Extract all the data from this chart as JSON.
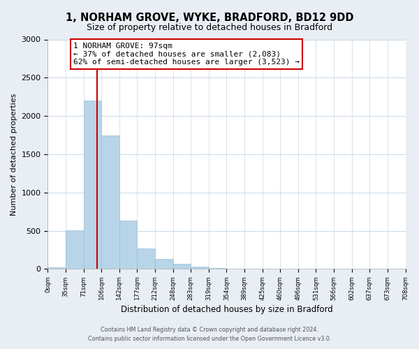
{
  "title": "1, NORHAM GROVE, WYKE, BRADFORD, BD12 9DD",
  "subtitle": "Size of property relative to detached houses in Bradford",
  "xlabel": "Distribution of detached houses by size in Bradford",
  "ylabel": "Number of detached properties",
  "bin_labels": [
    "0sqm",
    "35sqm",
    "71sqm",
    "106sqm",
    "142sqm",
    "177sqm",
    "212sqm",
    "248sqm",
    "283sqm",
    "319sqm",
    "354sqm",
    "389sqm",
    "425sqm",
    "460sqm",
    "496sqm",
    "531sqm",
    "566sqm",
    "602sqm",
    "637sqm",
    "673sqm",
    "708sqm"
  ],
  "bar_values": [
    20,
    510,
    2200,
    1750,
    630,
    265,
    130,
    70,
    30,
    10,
    5,
    2,
    1,
    0,
    0,
    0,
    0,
    0,
    0,
    0
  ],
  "bar_color": "#b8d4e8",
  "bar_edge_color": "#9bbdd6",
  "annotation_title": "1 NORHAM GROVE: 97sqm",
  "annotation_line1": "← 37% of detached houses are smaller (2,083)",
  "annotation_line2": "62% of semi-detached houses are larger (3,523) →",
  "annotation_box_color": "#ffffff",
  "annotation_box_edge": "#cc0000",
  "vline_color": "#cc0000",
  "footer1": "Contains HM Land Registry data © Crown copyright and database right 2024.",
  "footer2": "Contains public sector information licensed under the Open Government Licence v3.0.",
  "ylim": [
    0,
    3000
  ],
  "bin_width": 35,
  "background_color": "#e8eef4",
  "plot_bg_color": "#ffffff",
  "grid_color": "#c8d8e8"
}
